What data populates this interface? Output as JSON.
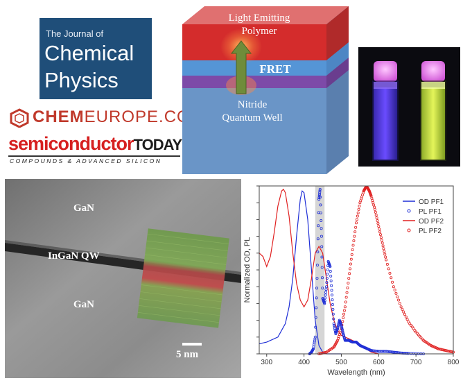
{
  "logos": {
    "jcp": {
      "line1": "The Journal of",
      "line2": "Chemical",
      "line3": "Physics"
    },
    "chemeurope": {
      "chem": "CHEM",
      "rest": "EUROPE.COM"
    },
    "semiconductor_today": {
      "semi": "semiconductor",
      "today": "TODAY",
      "sub": "COMPOUNDS & ADVANCED SILICON"
    }
  },
  "diagram": {
    "top_label_1": "Light Emitting",
    "top_label_2": "Polymer",
    "fret_label": "FRET",
    "bottom_label_1": "Nitride",
    "bottom_label_2": "Quantum Well"
  },
  "tem": {
    "label_top": "GaN",
    "label_qw": "InGaN QW",
    "label_bottom": "GaN",
    "scale": "5 nm"
  },
  "chart_data": {
    "type": "line",
    "xlabel": "Wavelength (nm)",
    "ylabel": "Normalized OD, PL",
    "xlim": [
      280,
      800
    ],
    "ylim": [
      0,
      1.0
    ],
    "xticks": [
      300,
      400,
      500,
      600,
      700,
      800
    ],
    "xtick_labels": [
      "300",
      "400",
      "500",
      "600",
      "700",
      "800"
    ],
    "legend_position": "top-right",
    "shaded_band": [
      430,
      455
    ],
    "series": [
      {
        "name": "OD PF1",
        "style": "line",
        "color": "#1f2fd6",
        "x": [
          280,
          300,
          330,
          350,
          360,
          370,
          380,
          390,
          395,
          400,
          410,
          420,
          430,
          440,
          450,
          460,
          480,
          500
        ],
        "y": [
          0.06,
          0.07,
          0.1,
          0.18,
          0.28,
          0.45,
          0.7,
          0.92,
          0.97,
          0.96,
          0.8,
          0.5,
          0.2,
          0.05,
          0.01,
          0.0,
          0.0,
          0.0
        ]
      },
      {
        "name": "PL PF1",
        "style": "markers",
        "color": "#1f2fd6",
        "x": [
          415,
          420,
          425,
          430,
          435,
          440,
          443,
          447,
          450,
          455,
          460,
          465,
          470,
          475,
          480,
          485,
          490,
          495,
          500,
          505,
          510,
          520,
          530,
          540,
          550,
          560,
          570,
          580,
          600,
          620,
          640,
          660,
          680,
          720
        ],
        "y": [
          0.0,
          0.01,
          0.03,
          0.1,
          0.45,
          0.92,
          0.98,
          0.7,
          0.33,
          0.3,
          0.4,
          0.55,
          0.52,
          0.35,
          0.18,
          0.12,
          0.15,
          0.2,
          0.17,
          0.12,
          0.08,
          0.08,
          0.07,
          0.07,
          0.05,
          0.04,
          0.03,
          0.02,
          0.015,
          0.015,
          0.01,
          0.005,
          0.003,
          0.0
        ]
      },
      {
        "name": "OD PF2",
        "style": "line",
        "color": "#e02020",
        "x": [
          280,
          290,
          300,
          310,
          320,
          330,
          340,
          345,
          350,
          360,
          370,
          380,
          390,
          400,
          410,
          420,
          430,
          440,
          450,
          460,
          470,
          480,
          490,
          500,
          520,
          540,
          560,
          580,
          600
        ],
        "y": [
          0.6,
          0.58,
          0.52,
          0.58,
          0.72,
          0.88,
          0.97,
          0.98,
          0.96,
          0.82,
          0.6,
          0.42,
          0.32,
          0.28,
          0.32,
          0.45,
          0.6,
          0.64,
          0.6,
          0.45,
          0.3,
          0.2,
          0.14,
          0.11,
          0.09,
          0.07,
          0.04,
          0.01,
          0.0
        ]
      },
      {
        "name": "PL PF2",
        "style": "markers",
        "color": "#e02020",
        "x": [
          440,
          460,
          480,
          490,
          500,
          510,
          520,
          530,
          540,
          550,
          560,
          565,
          570,
          575,
          580,
          590,
          600,
          610,
          620,
          640,
          660,
          680,
          700,
          720,
          740,
          760,
          780,
          800
        ],
        "y": [
          0.0,
          0.01,
          0.04,
          0.08,
          0.15,
          0.28,
          0.45,
          0.62,
          0.78,
          0.9,
          0.97,
          0.99,
          0.99,
          0.97,
          0.94,
          0.86,
          0.76,
          0.66,
          0.56,
          0.4,
          0.28,
          0.19,
          0.13,
          0.08,
          0.05,
          0.03,
          0.02,
          0.01
        ]
      }
    ]
  }
}
